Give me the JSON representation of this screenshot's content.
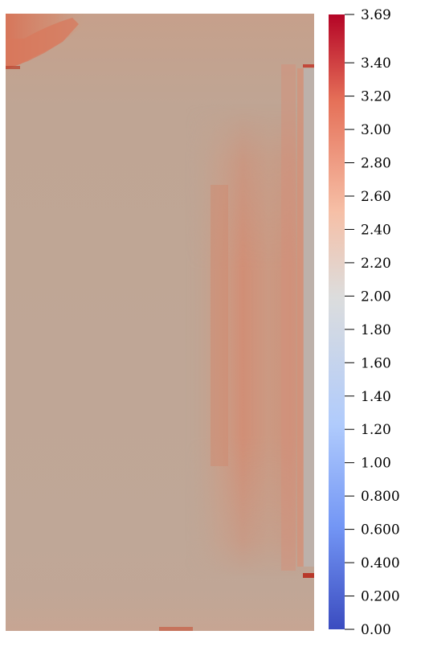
{
  "colorbar": {
    "ticks": [
      {
        "label": "3.69",
        "value": 3.69
      },
      {
        "label": "3.40",
        "value": 3.4
      },
      {
        "label": "3.20",
        "value": 3.2
      },
      {
        "label": "3.00",
        "value": 3.0
      },
      {
        "label": "2.80",
        "value": 2.8
      },
      {
        "label": "2.60",
        "value": 2.6
      },
      {
        "label": "2.40",
        "value": 2.4
      },
      {
        "label": "2.20",
        "value": 2.2
      },
      {
        "label": "2.00",
        "value": 2.0
      },
      {
        "label": "1.80",
        "value": 1.8
      },
      {
        "label": "1.60",
        "value": 1.6
      },
      {
        "label": "1.40",
        "value": 1.4
      },
      {
        "label": "1.20",
        "value": 1.2
      },
      {
        "label": "1.00",
        "value": 1.0
      },
      {
        "label": "0.800",
        "value": 0.8
      },
      {
        "label": "0.600",
        "value": 0.6
      },
      {
        "label": "0.400",
        "value": 0.4
      },
      {
        "label": "0.200",
        "value": 0.2
      },
      {
        "label": "0.00",
        "value": 0.0
      }
    ],
    "range": [
      0.0,
      3.69
    ],
    "colormap": [
      "#3b4cc0",
      "#7396f5",
      "#b0cbfc",
      "#dcdddd",
      "#f6bfa6",
      "#e57058",
      "#b40426"
    ]
  },
  "field_colors": {
    "background": "#bfa594",
    "lower_band": "#c2a898",
    "right_band": "#d79279",
    "right_band_inner": "#ce8a71",
    "edge_column": "#bdb1aa",
    "top_left_hot": "#d87357",
    "top_left_warm": "#c99a82",
    "edge_dark_red": "#b8382a"
  }
}
